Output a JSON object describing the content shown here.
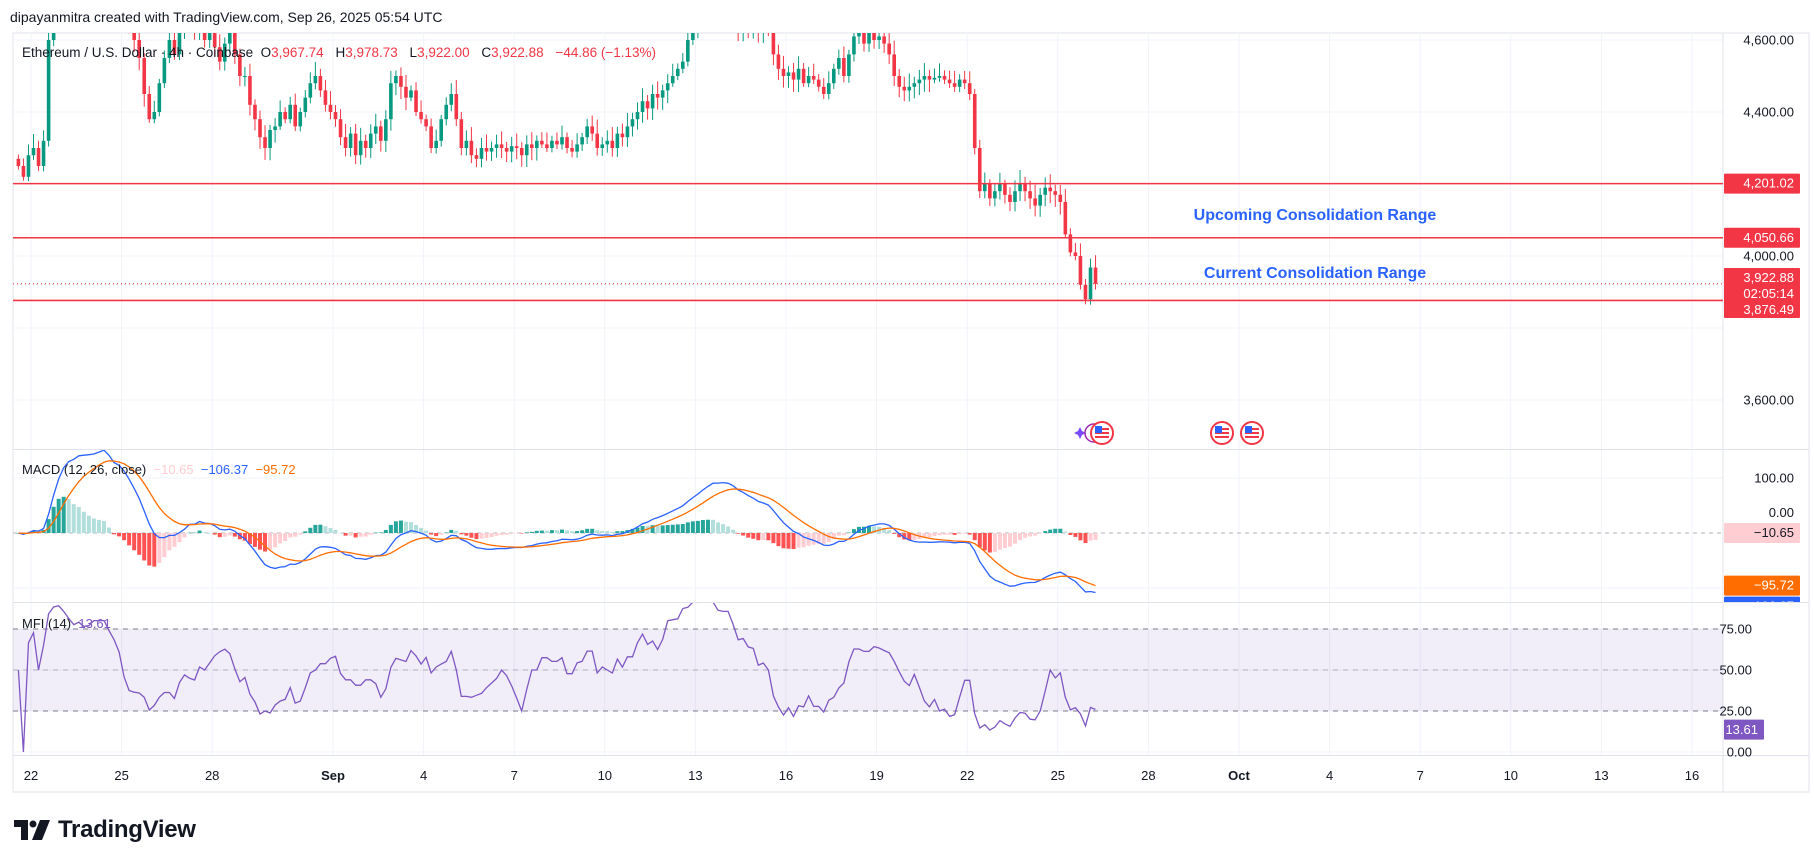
{
  "header": {
    "credit": "dipayanmitra created with TradingView.com, Sep 26, 2025 05:54 UTC"
  },
  "legend": {
    "symbol": "Ethereum / U.S. Dollar · 4h · Coinbase",
    "open_label": "O",
    "open": "3,967.74",
    "high_label": "H",
    "high": "3,978.73",
    "low_label": "L",
    "low": "3,922.00",
    "close_label": "C",
    "close": "3,922.88",
    "change": "−44.86 (−1.13%)"
  },
  "annotations": {
    "upcoming": "Upcoming Consolidation Range",
    "current": "Current Consolidation Range"
  },
  "macd_legend": {
    "title": "MACD (12, 26, close)",
    "hist": "−10.65",
    "macd": "−106.37",
    "signal": "−95.72"
  },
  "mfi_legend": {
    "title": "MFI (14)",
    "value": "13.61"
  },
  "logo": {
    "text": "TradingView"
  },
  "colors": {
    "up": "#089981",
    "down": "#f23645",
    "level_line": "#f23645",
    "annotation": "#2962ff",
    "macd": "#2962ff",
    "signal": "#ff6d00",
    "mfi": "#7e57c2",
    "hist_up_strong": "#26a69a",
    "hist_up_weak": "#b2dfdb",
    "hist_down_strong": "#ff5252",
    "hist_down_weak": "#ffcdd2"
  },
  "events": [
    {
      "icon": "us-flag-icon",
      "date": "Sep 26"
    },
    {
      "icon": "us-flag-icon",
      "date": "Sep 30"
    },
    {
      "icon": "us-flag-icon",
      "date": "Oct 1"
    }
  ],
  "chart_data": {
    "type": "candlestick",
    "interval": "4h",
    "start": "2025-08-21 12:00",
    "closes": [
      4250,
      4220,
      4280,
      4300,
      4250,
      4320,
      4600,
      4780,
      4830,
      4800,
      4760,
      4720,
      4780,
      4750,
      4770,
      4800,
      4850,
      4880,
      4750,
      4700,
      4780,
      4720,
      4650,
      4600,
      4550,
      4450,
      4380,
      4400,
      4480,
      4550,
      4600,
      4560,
      4620,
      4650,
      4700,
      4620,
      4680,
      4600,
      4620,
      4580,
      4540,
      4590,
      4620,
      4560,
      4500,
      4500,
      4420,
      4380,
      4330,
      4300,
      4350,
      4360,
      4400,
      4380,
      4420,
      4360,
      4400,
      4440,
      4480,
      4500,
      4460,
      4420,
      4400,
      4380,
      4330,
      4300,
      4340,
      4280,
      4320,
      4300,
      4340,
      4360,
      4320,
      4380,
      4480,
      4500,
      4470,
      4440,
      4460,
      4400,
      4380,
      4360,
      4300,
      4320,
      4380,
      4420,
      4450,
      4380,
      4300,
      4320,
      4280,
      4270,
      4300,
      4290,
      4300,
      4310,
      4300,
      4290,
      4305,
      4300,
      4280,
      4310,
      4300,
      4320,
      4310,
      4300,
      4320,
      4310,
      4330,
      4300,
      4290,
      4310,
      4330,
      4360,
      4340,
      4300,
      4310,
      4320,
      4300,
      4340,
      4330,
      4360,
      4380,
      4400,
      4430,
      4410,
      4450,
      4440,
      4460,
      4480,
      4500,
      4520,
      4540,
      4600,
      4620,
      4640,
      4680,
      4700,
      4720,
      4680,
      4700,
      4690,
      4660,
      4620,
      4650,
      4630,
      4640,
      4620,
      4650,
      4640,
      4560,
      4520,
      4500,
      4510,
      4490,
      4520,
      4480,
      4500,
      4490,
      4470,
      4450,
      4480,
      4520,
      4550,
      4500,
      4560,
      4610,
      4620,
      4590,
      4620,
      4600,
      4610,
      4590,
      4560,
      4500,
      4470,
      4460,
      4470,
      4480,
      4490,
      4500,
      4490,
      4495,
      4500,
      4490,
      4480,
      4470,
      4490,
      4480,
      4450,
      4300,
      4180,
      4200,
      4160,
      4180,
      4200,
      4170,
      4150,
      4180,
      4200,
      4180,
      4160,
      4140,
      4170,
      4190,
      4180,
      4170,
      4150,
      4060,
      4010,
      4000,
      3920,
      3880,
      3968,
      3922.88
    ],
    "x_ticks": [
      {
        "label": "22",
        "bold": false
      },
      {
        "label": "25",
        "bold": false
      },
      {
        "label": "28",
        "bold": false
      },
      {
        "label": "Sep",
        "bold": true
      },
      {
        "label": "4",
        "bold": false
      },
      {
        "label": "7",
        "bold": false
      },
      {
        "label": "10",
        "bold": false
      },
      {
        "label": "13",
        "bold": false
      },
      {
        "label": "16",
        "bold": false
      },
      {
        "label": "19",
        "bold": false
      },
      {
        "label": "22",
        "bold": false
      },
      {
        "label": "25",
        "bold": false
      },
      {
        "label": "28",
        "bold": false
      },
      {
        "label": "Oct",
        "bold": true
      },
      {
        "label": "4",
        "bold": false
      },
      {
        "label": "7",
        "bold": false
      },
      {
        "label": "10",
        "bold": false
      },
      {
        "label": "13",
        "bold": false
      },
      {
        "label": "16",
        "bold": false
      }
    ],
    "x_tick_dates": [
      "2025-08-22",
      "2025-08-25",
      "2025-08-28",
      "2025-09-01",
      "2025-09-04",
      "2025-09-07",
      "2025-09-10",
      "2025-09-13",
      "2025-09-16",
      "2025-09-19",
      "2025-09-22",
      "2025-09-25",
      "2025-09-28",
      "2025-10-01",
      "2025-10-04",
      "2025-10-07",
      "2025-10-10",
      "2025-10-13",
      "2025-10-16"
    ],
    "y_ticks": [
      "4,600.00",
      "4,400.00",
      "4,000.00",
      "3,600.00"
    ],
    "y_tick_values": [
      4600,
      4400,
      4000,
      3600
    ],
    "ylim": [
      3470,
      4619
    ],
    "horizontal_levels": [
      {
        "value": 4201.02,
        "label": "4,201.02"
      },
      {
        "value": 4050.66,
        "label": "4,050.66"
      },
      {
        "value": 3876.49,
        "label": "3,876.49"
      }
    ],
    "last_price": {
      "value": 3922.88,
      "label": "3,922.88",
      "countdown": "02:05:14"
    },
    "macd": {
      "y_ticks": [
        "100.00"
      ],
      "y_tick_values": [
        100
      ],
      "zero_label": "0.00",
      "last": {
        "hist": {
          "value": -10.65,
          "label": "−10.65"
        },
        "signal": {
          "value": -95.72,
          "label": "−95.72"
        },
        "macd": {
          "value": -106.37,
          "label": "−106.37"
        }
      }
    },
    "mfi": {
      "y_ticks": [
        "75.00",
        "50.00",
        "25.00",
        "0.00"
      ],
      "y_tick_values": [
        75,
        50,
        25,
        0
      ],
      "band": [
        25,
        75
      ],
      "last": {
        "value": 13.61,
        "label": "13.61"
      }
    },
    "grid": true
  }
}
